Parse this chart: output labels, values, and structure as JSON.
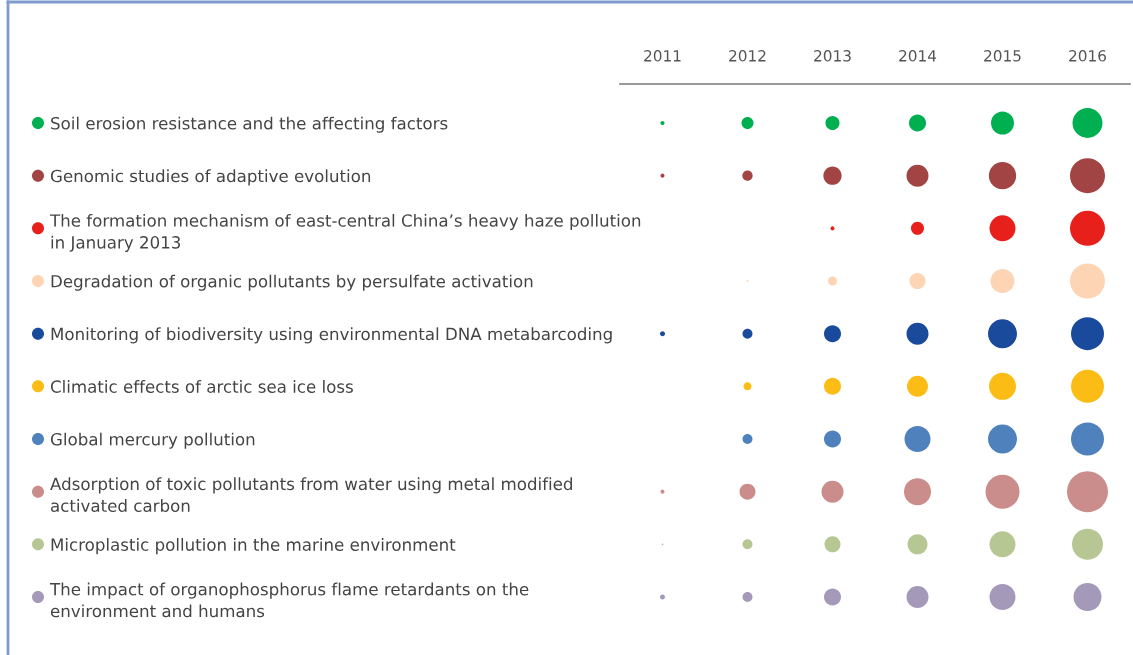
{
  "chart_data": {
    "type": "bubble",
    "orientation": "horizontal",
    "categories": [
      "Soil erosion resistance and the affecting factors",
      "Genomic studies of adaptive evolution",
      "The formation mechanism of east-central China’s heavy haze pollution\nin January 2013",
      "Degradation of organic pollutants by persulfate activation",
      "Monitoring of biodiversity using environmental DNA metabarcoding",
      "Climatic effects of arctic sea ice loss",
      "Global mercury pollution",
      "Adsorption of toxic pollutants from water using metal modified\nactivated carbon",
      "Microplastic pollution in the marine environment",
      "The impact of organophosphorus flame retardants on the\nenvironment and humans"
    ],
    "xlim": [
      2010.5,
      2016.5
    ],
    "xticks": [
      2011,
      2012,
      2013,
      2014,
      2015,
      2016
    ],
    "series": [
      {
        "colors": [
          "#00b050",
          "#a24443",
          "#e8201c",
          "#fdd5b4",
          "#1a4a9c",
          "#fbbc15",
          "#4f81bd",
          "#cb8d8b",
          "#b6c794",
          "#a599b9"
        ],
        "values": [
          2011,
          2011,
          null,
          null,
          2011,
          null,
          null,
          2011,
          2011,
          2011
        ],
        "sizes": [
          0.01,
          0.01,
          null,
          null,
          0.015,
          null,
          null,
          0.01,
          0.002,
          0.015
        ]
      },
      {
        "colors": [
          "#00b050",
          "#a24443",
          "#e8201c",
          "#fdd5b4",
          "#1a4a9c",
          "#fbbc15",
          "#4f81bd",
          "#cb8d8b",
          "#b6c794",
          "#a599b9"
        ],
        "values": [
          2012,
          2012,
          null,
          2012,
          2012,
          2012,
          2012,
          2012,
          2012,
          2012
        ],
        "sizes": [
          0.086,
          0.063,
          null,
          0.002,
          0.059,
          0.038,
          0.059,
          0.152,
          0.059,
          0.059
        ]
      },
      {
        "colors": [
          "#00b050",
          "#a24443",
          "#e8201c",
          "#fdd5b4",
          "#1a4a9c",
          "#fbbc15",
          "#4f81bd",
          "#cb8d8b",
          "#b6c794",
          "#a599b9"
        ],
        "values": [
          2013,
          2013,
          2013,
          2013,
          2013,
          2013,
          2013,
          2013,
          2013,
          2013
        ],
        "sizes": [
          0.117,
          0.199,
          0.01,
          0.048,
          0.172,
          0.172,
          0.172,
          0.288,
          0.152,
          0.172
        ]
      },
      {
        "colors": [
          "#00b050",
          "#a24443",
          "#e8201c",
          "#fdd5b4",
          "#1a4a9c",
          "#fbbc15",
          "#4f81bd",
          "#cb8d8b",
          "#b6c794",
          "#a599b9"
        ],
        "values": [
          2014,
          2014,
          2014,
          2014,
          2014,
          2014,
          2014,
          2014,
          2014,
          2014
        ],
        "sizes": [
          0.172,
          0.288,
          0.101,
          0.152,
          0.288,
          0.262,
          0.402,
          0.434,
          0.238,
          0.288
        ]
      },
      {
        "colors": [
          "#00b050",
          "#a24443",
          "#e8201c",
          "#fdd5b4",
          "#1a4a9c",
          "#fbbc15",
          "#4f81bd",
          "#cb8d8b",
          "#b6c794",
          "#a599b9"
        ],
        "values": [
          2015,
          2015,
          2015,
          2015,
          2015,
          2015,
          2015,
          2015,
          2015,
          2015
        ],
        "sizes": [
          0.315,
          0.443,
          0.402,
          0.343,
          0.5,
          0.434,
          0.5,
          0.688,
          0.402,
          0.402
        ]
      },
      {
        "colors": [
          "#00b050",
          "#a24443",
          "#e8201c",
          "#fdd5b4",
          "#1a4a9c",
          "#fbbc15",
          "#4f81bd",
          "#cb8d8b",
          "#b6c794",
          "#a599b9"
        ],
        "values": [
          2016,
          2016,
          2016,
          2016,
          2016,
          2016,
          2016,
          2016,
          2016,
          2016
        ],
        "sizes": [
          0.535,
          0.729,
          0.729,
          0.729,
          0.648,
          0.648,
          0.648,
          1,
          0.572,
          0.466
        ]
      }
    ]
  }
}
